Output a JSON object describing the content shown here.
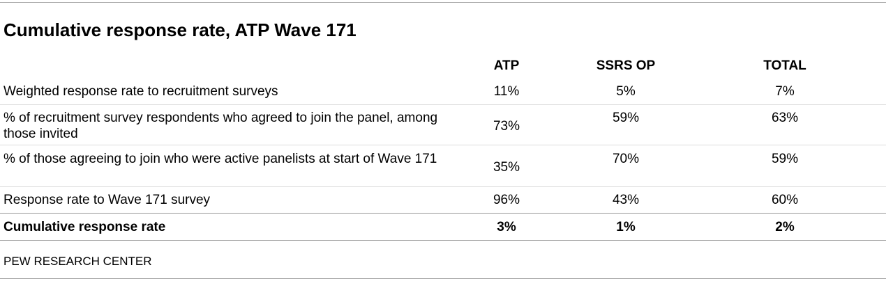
{
  "header": {
    "title": "Cumulative response rate, ATP Wave 171"
  },
  "table": {
    "columns": [
      "ATP",
      "SSRS OP",
      "TOTAL"
    ],
    "rows": [
      {
        "label": "Weighted response rate to recruitment surveys",
        "values": [
          "11%",
          "5%",
          "7%"
        ]
      },
      {
        "label": "% of recruitment survey respondents who agreed to join the panel, among those invited",
        "values": [
          "73%",
          "59%",
          "63%"
        ]
      },
      {
        "label": "% of those agreeing to join who were active panelists at start of Wave 171",
        "values": [
          "35%",
          "70%",
          "59%"
        ]
      },
      {
        "label": "Response rate to Wave 171 survey",
        "values": [
          "96%",
          "43%",
          "60%"
        ]
      },
      {
        "label": "Cumulative response rate",
        "values": [
          "3%",
          "1%",
          "2%"
        ]
      }
    ]
  },
  "footer": {
    "source": "PEW RESEARCH CENTER"
  }
}
